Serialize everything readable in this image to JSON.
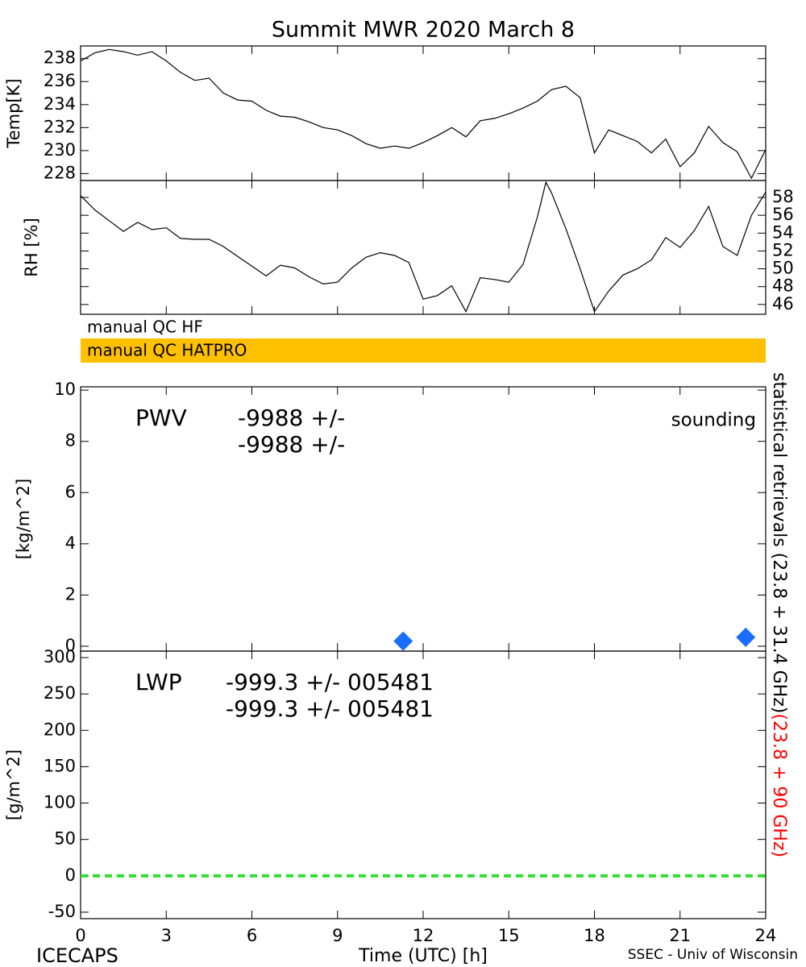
{
  "title": "Summit MWR 2020 March  8",
  "qc_flags": [
    {
      "label": "manual QC HF"
    },
    {
      "label": "manual QC HATPRO",
      "color": "#ffc000"
    }
  ],
  "right_label": [
    {
      "text": "statistical retrievals (23.8 + 31.4 GHz)",
      "color": "#000000"
    },
    {
      "text": "(23.8 + 90 GHz)",
      "color": "#ff0000"
    }
  ],
  "footer": {
    "left": "ICECAPS",
    "right": "SSEC - Univ of Wisconsin"
  },
  "chart_data": [
    {
      "type": "line",
      "ylabel": "Temp[K]",
      "color": "#000000",
      "ytick_side": "left",
      "xlim": [
        0,
        24
      ],
      "xticks": [
        0,
        3,
        6,
        9,
        12,
        15,
        18,
        21,
        24
      ],
      "ylim": [
        227.4,
        239.1
      ],
      "yticks": [
        228,
        230,
        232,
        234,
        236,
        238
      ],
      "x": [
        0,
        0.5,
        1,
        1.5,
        2,
        2.5,
        3,
        3.5,
        4,
        4.5,
        5,
        5.5,
        6,
        6.5,
        7,
        7.5,
        8,
        8.5,
        9,
        9.5,
        10,
        10.5,
        11,
        11.5,
        12,
        12.5,
        13,
        13.5,
        14,
        14.5,
        15,
        15.5,
        16,
        16.5,
        17,
        17.5,
        18,
        18.5,
        19,
        19.5,
        20,
        20.5,
        21,
        21.5,
        22,
        22.5,
        23,
        23.5,
        24
      ],
      "values": [
        237.8,
        238.5,
        238.8,
        238.6,
        238.3,
        238.6,
        237.8,
        236.8,
        236.1,
        236.3,
        235.0,
        234.4,
        234.3,
        233.5,
        233.0,
        232.9,
        232.5,
        232.0,
        231.8,
        231.3,
        230.6,
        230.2,
        230.4,
        230.2,
        230.7,
        231.3,
        232.0,
        231.2,
        232.6,
        232.8,
        233.2,
        233.7,
        234.3,
        235.3,
        235.6,
        234.6,
        229.8,
        231.8,
        231.3,
        230.8,
        229.8,
        231.0,
        228.6,
        229.8,
        232.1,
        230.7,
        229.9,
        227.6,
        230.1
      ]
    },
    {
      "type": "line",
      "ylabel": "RH [%]",
      "color": "#000000",
      "ytick_side": "right",
      "xlim": [
        0,
        24
      ],
      "xticks": [
        0,
        3,
        6,
        9,
        12,
        15,
        18,
        21,
        24
      ],
      "ylim": [
        44.9,
        59.9
      ],
      "yticks": [
        46,
        48,
        50,
        52,
        54,
        56,
        58
      ],
      "x": [
        0,
        0.5,
        1,
        1.5,
        2,
        2.5,
        3,
        3.5,
        4,
        4.5,
        5,
        5.5,
        6,
        6.5,
        7,
        7.5,
        8,
        8.5,
        9,
        9.5,
        10,
        10.5,
        11,
        11.5,
        12,
        12.5,
        13,
        13.5,
        14,
        14.5,
        15,
        15.5,
        16,
        16.3,
        16.5,
        17,
        17.5,
        18,
        18.5,
        19,
        19.5,
        20,
        20.5,
        21,
        21.5,
        22,
        22.5,
        23,
        23.5,
        24
      ],
      "values": [
        58.2,
        56.6,
        55.4,
        54.2,
        55.2,
        54.4,
        54.6,
        53.4,
        53.3,
        53.3,
        52.5,
        51.4,
        50.3,
        49.2,
        50.4,
        50.1,
        49.1,
        48.3,
        48.5,
        50.1,
        51.3,
        51.8,
        51.5,
        50.7,
        46.6,
        47.0,
        48.1,
        45.2,
        49.0,
        48.8,
        48.5,
        50.5,
        55.8,
        59.7,
        58.5,
        54.5,
        50.0,
        45.2,
        47.5,
        49.3,
        50.0,
        51.0,
        53.5,
        52.4,
        54.3,
        57.0,
        52.5,
        51.5,
        56.0,
        58.6
      ]
    },
    {
      "type": "scatter",
      "ylabel": "[kg/m^2]",
      "ytick_side": "left",
      "legend": "upper right",
      "xlim": [
        0,
        24
      ],
      "xticks": [
        0,
        3,
        6,
        9,
        12,
        15,
        18,
        21,
        24
      ],
      "ylim": [
        -0.19,
        10.13
      ],
      "yticks": [
        0,
        2,
        4,
        6,
        8,
        10
      ],
      "annotations": [
        {
          "text": "PWV",
          "color": "#000000"
        },
        {
          "text": "-9988 +/-",
          "color": "#000000"
        },
        {
          "text": "-9988 +/-",
          "color": "#ff0000"
        }
      ],
      "series": [
        {
          "name": "sounding",
          "color": "#1a6eff",
          "marker": "diamond",
          "x": [
            11.3,
            23.3
          ],
          "values": [
            0.2,
            0.35
          ]
        }
      ]
    },
    {
      "type": "line",
      "ylabel": "[g/m^2]",
      "xlabel": "Time (UTC) [h]",
      "ytick_side": "left",
      "xlim": [
        0,
        24
      ],
      "xticks": [
        0,
        3,
        6,
        9,
        12,
        15,
        18,
        21,
        24
      ],
      "ylim": [
        -58.9,
        308.9
      ],
      "yticks": [
        -50,
        0,
        50,
        100,
        150,
        200,
        250,
        300
      ],
      "annotations": [
        {
          "text": "LWP",
          "color": "#000000"
        },
        {
          "text": "-999.3 +/- 005481",
          "color": "#000000"
        },
        {
          "text": "-999.3 +/- 005481",
          "color": "#ff0000"
        }
      ],
      "series": [
        {
          "color": "#33dd33",
          "style": "dashed",
          "x": [
            0,
            24
          ],
          "values": [
            0,
            0
          ]
        }
      ]
    }
  ]
}
